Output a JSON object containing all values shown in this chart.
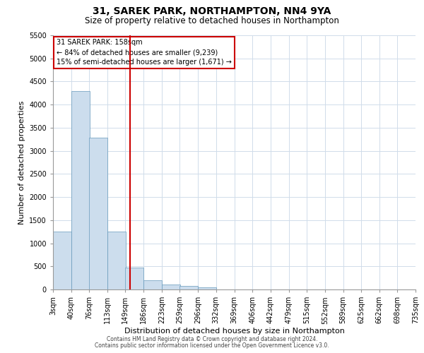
{
  "title": "31, SAREK PARK, NORTHAMPTON, NN4 9YA",
  "subtitle": "Size of property relative to detached houses in Northampton",
  "xlabel": "Distribution of detached houses by size in Northampton",
  "ylabel": "Number of detached properties",
  "footnote1": "Contains HM Land Registry data © Crown copyright and database right 2024.",
  "footnote2": "Contains public sector information licensed under the Open Government Licence v3.0.",
  "annotation_line1": "31 SAREK PARK: 158sqm",
  "annotation_line2": "← 84% of detached houses are smaller (9,239)",
  "annotation_line3": "15% of semi-detached houses are larger (1,671) →",
  "property_size": 158,
  "bar_color": "#ccdded",
  "bar_edge_color": "#6699bb",
  "vline_color": "#cc0000",
  "categories": [
    "3sqm",
    "40sqm",
    "76sqm",
    "113sqm",
    "149sqm",
    "186sqm",
    "223sqm",
    "259sqm",
    "296sqm",
    "332sqm",
    "369sqm",
    "406sqm",
    "442sqm",
    "479sqm",
    "515sqm",
    "552sqm",
    "589sqm",
    "625sqm",
    "662sqm",
    "698sqm",
    "735sqm"
  ],
  "bin_edges": [
    3,
    40,
    76,
    113,
    149,
    186,
    223,
    259,
    296,
    332,
    369,
    406,
    442,
    479,
    515,
    552,
    589,
    625,
    662,
    698,
    735
  ],
  "values": [
    1250,
    4300,
    3280,
    1250,
    480,
    200,
    100,
    70,
    50,
    0,
    0,
    0,
    0,
    0,
    0,
    0,
    0,
    0,
    0,
    0,
    0
  ],
  "ylim": [
    0,
    5500
  ],
  "yticks": [
    0,
    500,
    1000,
    1500,
    2000,
    2500,
    3000,
    3500,
    4000,
    4500,
    5000,
    5500
  ],
  "grid_color": "#d0dcea",
  "title_fontsize": 10,
  "subtitle_fontsize": 8.5,
  "tick_fontsize": 7,
  "label_fontsize": 8,
  "annotation_fontsize": 7,
  "footnote_fontsize": 5.5
}
